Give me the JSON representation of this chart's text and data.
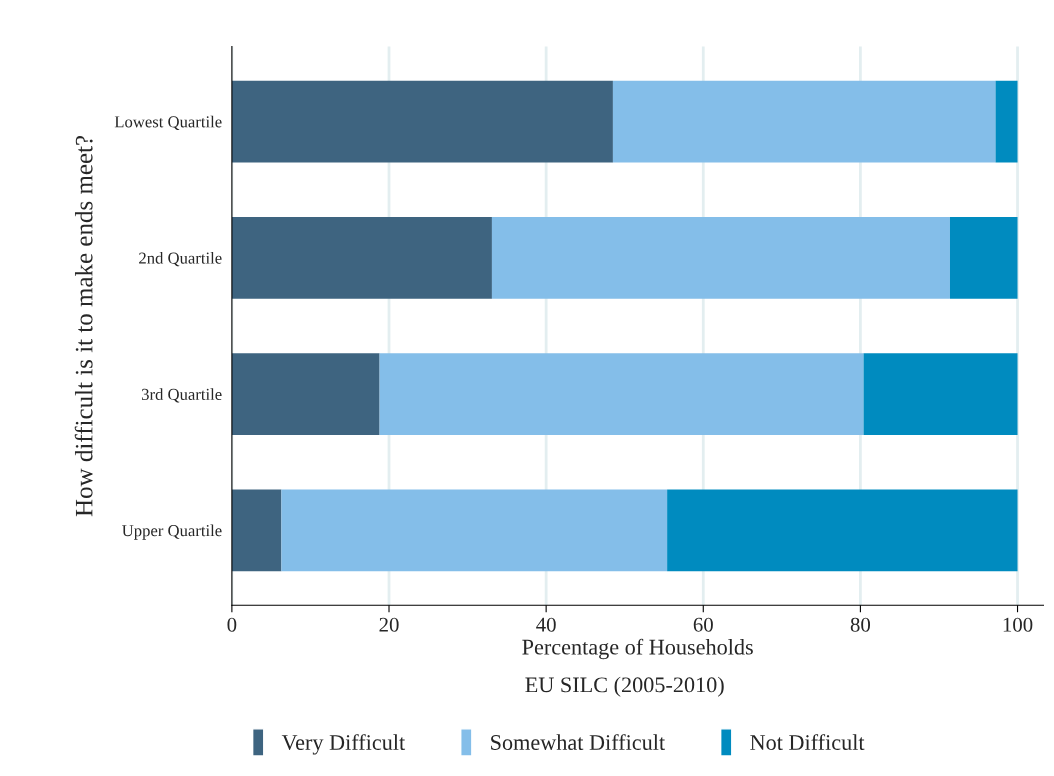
{
  "chart_data": {
    "type": "bar",
    "orientation": "horizontal",
    "stacked": true,
    "categories": [
      "Lowest Quartile",
      "2nd Quartile",
      "3rd Quartile",
      "Upper Quartile"
    ],
    "series": [
      {
        "name": "Very Difficult",
        "color": "#3e6480",
        "values": [
          48.5,
          33.1,
          18.8,
          6.3
        ]
      },
      {
        "name": "Somewhat Difficult",
        "color": "#84bee9",
        "values": [
          48.7,
          58.3,
          61.6,
          49.1
        ]
      },
      {
        "name": "Not Difficult",
        "color": "#008bbf",
        "values": [
          2.8,
          8.6,
          19.6,
          44.6
        ]
      }
    ],
    "xlim": [
      0,
      103.3
    ],
    "xticks": [
      0,
      20,
      40,
      60,
      80,
      100
    ],
    "xlabel": "Percentage of Households",
    "ylabel": "How difficult is it to make ends meet?",
    "annotations": [
      "EU SILC (2005-2010)"
    ],
    "grid": "x",
    "legend": "bottom"
  }
}
